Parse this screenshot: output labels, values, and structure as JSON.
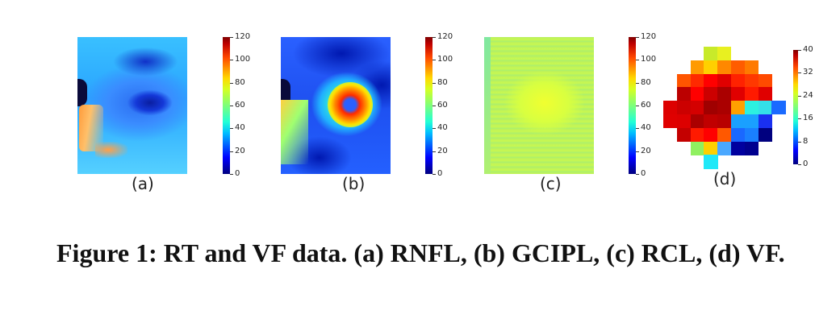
{
  "figure": {
    "caption": "Figure 1: RT and VF data. (a) RNFL, (b) GCIPL, (c) RCL, (d) VF.",
    "panels": [
      {
        "label": "(a)",
        "colorbar_ticks": [
          "120",
          "100",
          "80",
          "60",
          "40",
          "20",
          "0"
        ]
      },
      {
        "label": "(b)",
        "colorbar_ticks": [
          "120",
          "100",
          "80",
          "60",
          "40",
          "20",
          "0"
        ]
      },
      {
        "label": "(c)",
        "colorbar_ticks": [
          "120",
          "100",
          "80",
          "60",
          "40",
          "20",
          "0"
        ]
      },
      {
        "label": "(d)",
        "colorbar_ticks": [
          "40",
          "32",
          "24",
          "16",
          "8",
          "0"
        ]
      }
    ],
    "vf_grid": [
      [
        null,
        null,
        null,
        "#c8ea2a",
        "#e8f020",
        null,
        null,
        null,
        null
      ],
      [
        null,
        null,
        "#ff9a00",
        "#ffd000",
        "#ff8800",
        "#ff5c00",
        "#ff7a00",
        null,
        null
      ],
      [
        null,
        "#ff5500",
        "#ff2a00",
        "#ff0000",
        "#e00000",
        "#ff2200",
        "#ff3800",
        "#ff4a00",
        null
      ],
      [
        null,
        "#bb0000",
        "#ff0000",
        "#cc0000",
        "#aa0000",
        "#e00000",
        "#ff1a00",
        "#e00000",
        null
      ],
      [
        "#dd0000",
        "#cc0000",
        "#d40000",
        "#a00000",
        "#aa0000",
        "#ffa000",
        "#2cf0e0",
        "#34e0e8",
        "#1a6aff"
      ],
      [
        "#e00000",
        "#dd0000",
        "#aa0000",
        "#c00000",
        "#b80000",
        "#1aa0ff",
        "#1aa0ff",
        "#1a30f0",
        null
      ],
      [
        null,
        "#c40000",
        "#ff1a00",
        "#ff0000",
        "#ff5800",
        "#1a68ff",
        "#1a80ff",
        "#00007f",
        null
      ],
      [
        null,
        null,
        "#90f060",
        "#ffd000",
        "#4aa8ff",
        "#00009f",
        "#00008f",
        null,
        null
      ],
      [
        null,
        null,
        null,
        "#20e8f8",
        null,
        null,
        null,
        null,
        null
      ]
    ]
  }
}
